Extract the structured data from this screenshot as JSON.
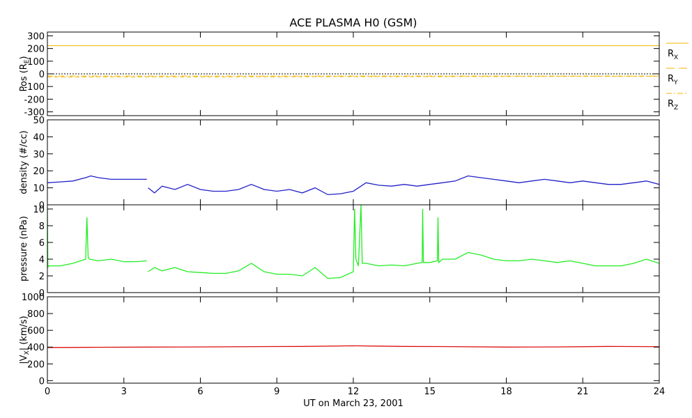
{
  "colors": {
    "frame": "#000000",
    "position": "#f0b400",
    "density": "#2020c8",
    "pressure": "#22ee22",
    "velocity": "#dd1111"
  },
  "figure": {
    "title": "ACE PLASMA H0 (GSM)",
    "xlabel": "UT on March 23, 2001"
  },
  "chart_data": [
    {
      "type": "line",
      "panel": "position",
      "ylabel_main": "Pos (R",
      "ylabel_sub": "E",
      "ylabel_close": ")",
      "xlim": [
        0,
        24
      ],
      "ylim": [
        -330,
        330
      ],
      "yticks": [
        300,
        200,
        100,
        0,
        -100,
        -200,
        -300
      ],
      "zero_line": true,
      "series": [
        {
          "name": "R",
          "subscript": "X",
          "style": "solid",
          "x": [
            0,
            24
          ],
          "values": [
            222,
            222
          ]
        },
        {
          "name": "R",
          "subscript": "Y",
          "style": "dashed",
          "x": [
            0,
            3,
            6,
            9,
            12,
            15,
            18,
            21,
            24
          ],
          "values": [
            -25,
            -24,
            -24,
            -23,
            -22,
            -22,
            -21,
            -20,
            -20
          ]
        },
        {
          "name": "R",
          "subscript": "Z",
          "style": "dashdot",
          "x": [
            0,
            24
          ],
          "values": [
            -17,
            -17
          ]
        }
      ]
    },
    {
      "type": "line",
      "panel": "density",
      "ylabel": "density (#/cc)",
      "xlim": [
        0,
        24
      ],
      "ylim": [
        0,
        50
      ],
      "yticks": [
        50,
        40,
        30,
        20,
        10,
        0
      ],
      "series": [
        {
          "name": "",
          "x": [
            0,
            0.5,
            1,
            1.5,
            1.7,
            2,
            2.5,
            3,
            3.5,
            3.9
          ],
          "values": [
            13,
            13.5,
            14,
            16,
            17,
            16,
            15,
            15,
            15,
            15
          ]
        },
        {
          "name": "",
          "x": [
            3.95,
            4.2,
            4.5,
            5,
            5.5,
            6,
            6.5,
            7,
            7.5,
            8,
            8.5,
            9,
            9.5,
            10,
            10.5,
            11,
            11.5,
            12,
            12.3,
            12.5,
            13,
            13.5,
            14,
            14.5,
            15,
            15.5,
            16,
            16.5,
            17,
            17.5,
            18,
            18.5,
            19,
            19.5,
            20,
            20.5,
            21,
            21.5,
            22,
            22.5,
            23,
            23.5,
            24
          ],
          "values": [
            10,
            7,
            11,
            9,
            12,
            9,
            8,
            8,
            9,
            12,
            9,
            8,
            9,
            7,
            10,
            6,
            6.5,
            8,
            11,
            13,
            11.5,
            11,
            12,
            11,
            12,
            13,
            14,
            17,
            16,
            15,
            14,
            13,
            14,
            15,
            14,
            13,
            14,
            13,
            12,
            12,
            13,
            14,
            12
          ]
        }
      ]
    },
    {
      "type": "line",
      "panel": "pressure",
      "ylabel": "pressure (nPa)",
      "xlim": [
        0,
        24
      ],
      "ylim": [
        0,
        10.5
      ],
      "yticks": [
        10,
        8,
        6,
        4,
        2,
        0
      ],
      "series": [
        {
          "name": "",
          "x": [
            0,
            0.02,
            0.05,
            0.5,
            1,
            1.5,
            1.55,
            1.6,
            1.65,
            2,
            2.5,
            3,
            3.5,
            3.9
          ],
          "values": [
            10,
            3,
            3.2,
            3.2,
            3.5,
            4,
            9,
            4.2,
            4,
            3.8,
            4,
            3.7,
            3.7,
            3.8
          ]
        },
        {
          "name": "",
          "x": [
            3.95,
            4.2,
            4.5,
            5,
            5.5,
            6,
            6.5,
            7,
            7.5,
            8,
            8.5,
            9,
            9.5,
            10,
            10.5,
            11,
            11.5,
            12,
            12.05,
            12.1,
            12.2,
            12.3,
            12.35,
            12.4,
            12.5,
            13,
            13.5,
            14,
            14.5,
            14.7,
            14.72,
            14.75,
            15,
            15.3,
            15.32,
            15.35,
            15.5,
            16,
            16.5,
            17,
            17.5,
            18,
            18.5,
            19,
            19.5,
            20,
            20.5,
            21,
            21.5,
            22,
            22.5,
            23,
            23.5,
            24
          ],
          "values": [
            2.5,
            3,
            2.6,
            3,
            2.5,
            2.4,
            2.3,
            2.3,
            2.6,
            3.5,
            2.5,
            2.2,
            2.2,
            2.0,
            3,
            1.7,
            1.8,
            2.5,
            10,
            4,
            3.2,
            10.5,
            3.5,
            3.5,
            3.5,
            3.2,
            3.3,
            3.2,
            3.5,
            3.6,
            10,
            3.6,
            3.6,
            3.8,
            9,
            3.6,
            4,
            4,
            4.8,
            4.5,
            4,
            3.8,
            3.8,
            4,
            3.8,
            3.6,
            3.8,
            3.5,
            3.2,
            3.2,
            3.2,
            3.5,
            4,
            3.5
          ]
        }
      ]
    },
    {
      "type": "line",
      "panel": "velocity",
      "ylabel_open": "|V",
      "ylabel_sub": "X",
      "ylabel_close": "| (km/s)",
      "xlim": [
        0,
        24
      ],
      "ylim": [
        -30,
        1000
      ],
      "yticks": [
        1000,
        800,
        600,
        400,
        200,
        0
      ],
      "xticks": [
        0,
        3,
        6,
        9,
        12,
        15,
        18,
        21,
        24
      ],
      "series": [
        {
          "name": "",
          "x": [
            0,
            2,
            4,
            6,
            8,
            10,
            12,
            13,
            14,
            16,
            18,
            20,
            22,
            24
          ],
          "values": [
            395,
            398,
            400,
            402,
            405,
            408,
            415,
            412,
            408,
            405,
            400,
            402,
            408,
            405
          ]
        }
      ]
    }
  ]
}
